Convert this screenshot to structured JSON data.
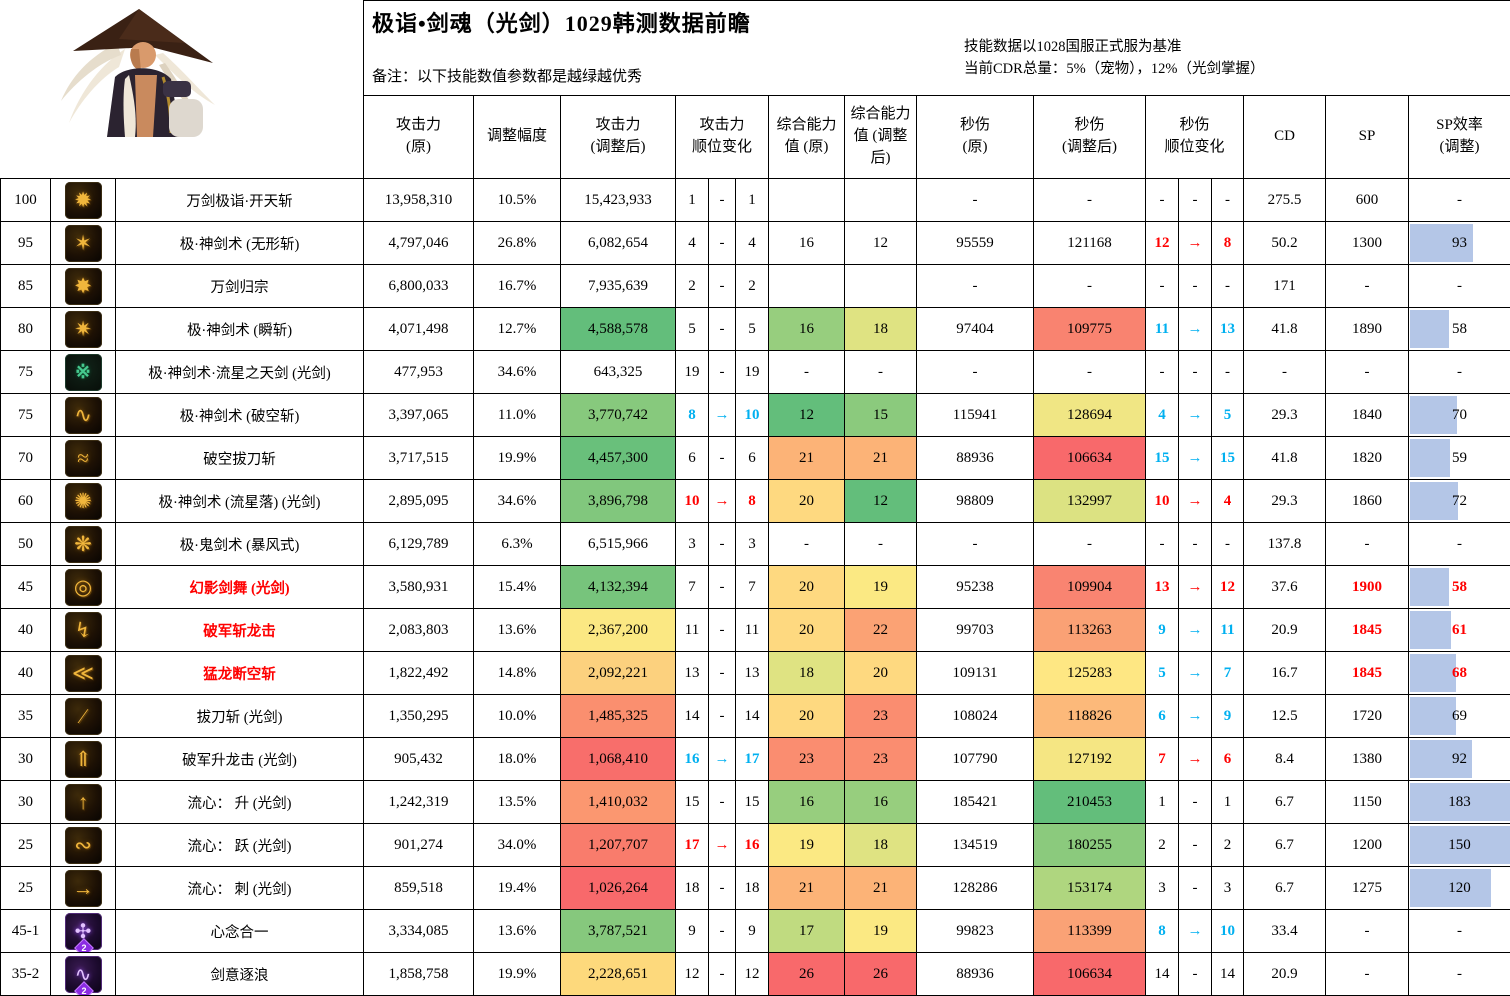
{
  "title": "极诣•剑魂（光剑）1029韩测数据前瞻",
  "note_left": "备注：以下技能数值参数都是越绿越优秀",
  "note_right_1": "技能数据以1028国服正式服为基准",
  "note_right_2": "当前CDR总量：5%（宠物），12%（光剑掌握）",
  "colors": {
    "bar": "#B4C6E7",
    "red_text": "#FF0000",
    "blue_text": "#00B0F0",
    "border": "#000000"
  },
  "columns": {
    "atk_orig": "攻击力\n(原)",
    "adj": "调整幅度",
    "atk_adj": "攻击力\n(调整后)",
    "atk_rank": "攻击力\n顺位变化",
    "comp_orig": "综合能力\n值 (原)",
    "comp_adj": "综合能力\n值 (调整\n后)",
    "dps_orig": "秒伤\n(原)",
    "dps_adj": "秒伤\n(调整后)",
    "dps_rank": "秒伤\n顺位变化",
    "cd": "CD",
    "sp": "SP",
    "sp_eff": "SP效率\n(调整)"
  },
  "rows": [
    {
      "lv": "100",
      "name": "万剑极诣·开天斩",
      "nameRed": false,
      "icon": {
        "style": "gold",
        "glyph": "✹"
      },
      "atkO": "13,958,310",
      "pct": "10.5%",
      "atkA": "15,423,933",
      "atkABg": "",
      "ar": [
        "1",
        "-",
        "1"
      ],
      "arC": "",
      "cO": "",
      "cOBg": "",
      "cA": "",
      "cABg": "",
      "dO": "-",
      "dA": "-",
      "dABg": "",
      "dr": [
        "-",
        "-",
        "-"
      ],
      "drC": "",
      "cd": "275.5",
      "sp": "600",
      "spRed": false,
      "eff": "-",
      "effRed": false,
      "bar": 0
    },
    {
      "lv": "95",
      "name": "极·神剑术 (无形斩)",
      "nameRed": false,
      "icon": {
        "style": "gold",
        "glyph": "✶"
      },
      "atkO": "4,797,046",
      "pct": "26.8%",
      "atkA": "6,082,654",
      "atkABg": "",
      "ar": [
        "4",
        "-",
        "4"
      ],
      "arC": "",
      "cO": "16",
      "cOBg": "",
      "cA": "12",
      "cABg": "",
      "dO": "95559",
      "dA": "121168",
      "dABg": "",
      "dr": [
        "12",
        "→",
        "8"
      ],
      "drC": "red",
      "cd": "50.2",
      "sp": "1300",
      "spRed": false,
      "eff": "93",
      "effRed": false,
      "bar": 62
    },
    {
      "lv": "85",
      "name": "万剑归宗",
      "nameRed": false,
      "icon": {
        "style": "gold",
        "glyph": "✸"
      },
      "atkO": "6,800,033",
      "pct": "16.7%",
      "atkA": "7,935,639",
      "atkABg": "",
      "ar": [
        "2",
        "-",
        "2"
      ],
      "arC": "",
      "cO": "",
      "cOBg": "",
      "cA": "",
      "cABg": "",
      "dO": "-",
      "dA": "-",
      "dABg": "",
      "dr": [
        "-",
        "-",
        "-"
      ],
      "drC": "",
      "cd": "171",
      "sp": "-",
      "spRed": false,
      "eff": "-",
      "effRed": false,
      "bar": 0
    },
    {
      "lv": "80",
      "name": "极·神剑术 (瞬斩)",
      "nameRed": false,
      "icon": {
        "style": "gold",
        "glyph": "✷"
      },
      "atkO": "4,071,498",
      "pct": "12.7%",
      "atkA": "4,588,578",
      "atkABg": "#63BE7B",
      "ar": [
        "5",
        "-",
        "5"
      ],
      "arC": "",
      "cO": "16",
      "cOBg": "#97CE7E",
      "cA": "18",
      "cABg": "#DFE382",
      "dO": "97404",
      "dA": "109775",
      "dABg": "#F98370",
      "dr": [
        "11",
        "→",
        "13"
      ],
      "drC": "blue",
      "cd": "41.8",
      "sp": "1890",
      "spRed": false,
      "eff": "58",
      "effRed": false,
      "bar": 38.7
    },
    {
      "lv": "75",
      "name": "极·神剑术·流星之天剑 (光剑)",
      "nameRed": false,
      "icon": {
        "style": "green",
        "glyph": "※"
      },
      "atkO": "477,953",
      "pct": "34.6%",
      "atkA": "643,325",
      "atkABg": "",
      "ar": [
        "19",
        "-",
        "19"
      ],
      "arC": "",
      "cO": "-",
      "cOBg": "",
      "cA": "-",
      "cABg": "",
      "dO": "-",
      "dA": "-",
      "dABg": "",
      "dr": [
        "-",
        "-",
        "-"
      ],
      "drC": "",
      "cd": "-",
      "sp": "-",
      "spRed": false,
      "eff": "-",
      "effRed": false,
      "bar": 0
    },
    {
      "lv": "75",
      "name": "极·神剑术 (破空斩)",
      "nameRed": false,
      "icon": {
        "style": "gold",
        "glyph": "∿"
      },
      "atkO": "3,397,065",
      "pct": "11.0%",
      "atkA": "3,770,742",
      "atkABg": "#87C97D",
      "ar": [
        "8",
        "→",
        "10"
      ],
      "arC": "blue",
      "cO": "12",
      "cOBg": "#63BE7B",
      "cA": "15",
      "cABg": "#8BCA7D",
      "dO": "115941",
      "dA": "128694",
      "dABg": "#F0E684",
      "dr": [
        "4",
        "→",
        "5"
      ],
      "drC": "blue",
      "cd": "29.3",
      "sp": "1840",
      "spRed": false,
      "eff": "70",
      "effRed": false,
      "bar": 46.7
    },
    {
      "lv": "70",
      "name": "破空拔刀斩",
      "nameRed": false,
      "icon": {
        "style": "gold",
        "glyph": "≈"
      },
      "atkO": "3,717,515",
      "pct": "19.9%",
      "atkA": "4,457,300",
      "atkABg": "#69C07B",
      "ar": [
        "6",
        "-",
        "6"
      ],
      "arC": "",
      "cO": "21",
      "cOBg": "#FCB377",
      "cA": "21",
      "cABg": "#FCB377",
      "dO": "88936",
      "dA": "106634",
      "dABg": "#F8696B",
      "dr": [
        "15",
        "→",
        "15"
      ],
      "drC": "blue",
      "cd": "41.8",
      "sp": "1820",
      "spRed": false,
      "eff": "59",
      "effRed": false,
      "bar": 39.3
    },
    {
      "lv": "60",
      "name": "极·神剑术 (流星落)  (光剑)",
      "nameRed": false,
      "icon": {
        "style": "gold",
        "glyph": "✺"
      },
      "atkO": "2,895,095",
      "pct": "34.6%",
      "atkA": "3,896,798",
      "atkABg": "#81C77D",
      "ar": [
        "10",
        "→",
        "8"
      ],
      "arC": "red",
      "cO": "20",
      "cOBg": "#FED980",
      "cA": "12",
      "cABg": "#63BE7B",
      "dO": "98809",
      "dA": "132997",
      "dABg": "#DCE282",
      "dr": [
        "10",
        "→",
        "4"
      ],
      "drC": "red",
      "cd": "29.3",
      "sp": "1860",
      "spRed": false,
      "eff": "72",
      "effRed": false,
      "bar": 48
    },
    {
      "lv": "50",
      "name": "极·鬼剑术 (暴风式)",
      "nameRed": false,
      "icon": {
        "style": "gold",
        "glyph": "❋"
      },
      "atkO": "6,129,789",
      "pct": "6.3%",
      "atkA": "6,515,966",
      "atkABg": "",
      "ar": [
        "3",
        "-",
        "3"
      ],
      "arC": "",
      "cO": "-",
      "cOBg": "",
      "cA": "-",
      "cABg": "",
      "dO": "-",
      "dA": "-",
      "dABg": "",
      "dr": [
        "-",
        "-",
        "-"
      ],
      "drC": "",
      "cd": "137.8",
      "sp": "-",
      "spRed": false,
      "eff": "-",
      "effRed": false,
      "bar": 0
    },
    {
      "lv": "45",
      "name": "幻影剑舞 (光剑)",
      "nameRed": true,
      "icon": {
        "style": "gold",
        "glyph": "◎"
      },
      "atkO": "3,580,931",
      "pct": "15.4%",
      "atkA": "4,132,394",
      "atkABg": "#77C47C",
      "ar": [
        "7",
        "-",
        "7"
      ],
      "arC": "",
      "cO": "20",
      "cOBg": "#FED980",
      "cA": "19",
      "cABg": "#FBE983",
      "dO": "95238",
      "dA": "109904",
      "dABg": "#F98471",
      "dr": [
        "13",
        "→",
        "12"
      ],
      "drC": "red",
      "cd": "37.6",
      "sp": "1900",
      "spRed": true,
      "eff": "58",
      "effRed": true,
      "bar": 38.7
    },
    {
      "lv": "40",
      "name": "破军斩龙击",
      "nameRed": true,
      "icon": {
        "style": "gold",
        "glyph": "↯"
      },
      "atkO": "2,083,803",
      "pct": "13.6%",
      "atkA": "2,367,200",
      "atkABg": "#FBE883",
      "ar": [
        "11",
        "-",
        "11"
      ],
      "arC": "",
      "cO": "20",
      "cOBg": "#FED980",
      "cA": "22",
      "cABg": "#FBA274",
      "dO": "99703",
      "dA": "113263",
      "dABg": "#FAA175",
      "dr": [
        "9",
        "→",
        "11"
      ],
      "drC": "blue",
      "cd": "20.9",
      "sp": "1845",
      "spRed": true,
      "eff": "61",
      "effRed": true,
      "bar": 40.7
    },
    {
      "lv": "40",
      "name": "猛龙断空斩",
      "nameRed": true,
      "icon": {
        "style": "gold",
        "glyph": "≪"
      },
      "atkO": "1,822,492",
      "pct": "14.8%",
      "atkA": "2,092,221",
      "atkABg": "#FCD17E",
      "ar": [
        "13",
        "-",
        "13"
      ],
      "arC": "",
      "cO": "18",
      "cOBg": "#DFE382",
      "cA": "20",
      "cABg": "#FED980",
      "dO": "109131",
      "dA": "125283",
      "dABg": "#FEE783",
      "dr": [
        "5",
        "→",
        "7"
      ],
      "drC": "blue",
      "cd": "16.7",
      "sp": "1845",
      "spRed": true,
      "eff": "68",
      "effRed": true,
      "bar": 45.3
    },
    {
      "lv": "35",
      "name": "拔刀斩 (光剑)",
      "nameRed": false,
      "icon": {
        "style": "gold",
        "glyph": "∕"
      },
      "atkO": "1,350,295",
      "pct": "10.0%",
      "atkA": "1,485,325",
      "atkABg": "#FA8F6F",
      "ar": [
        "14",
        "-",
        "14"
      ],
      "arC": "",
      "cO": "20",
      "cOBg": "#FED980",
      "cA": "23",
      "cABg": "#FA8D70",
      "dO": "108024",
      "dA": "118826",
      "dABg": "#FCB97A",
      "dr": [
        "6",
        "→",
        "9"
      ],
      "drC": "blue",
      "cd": "12.5",
      "sp": "1720",
      "spRed": false,
      "eff": "69",
      "effRed": false,
      "bar": 46
    },
    {
      "lv": "30",
      "name": "破军升龙击 (光剑)",
      "nameRed": false,
      "icon": {
        "style": "gold",
        "glyph": "⇑"
      },
      "atkO": "905,432",
      "pct": "18.0%",
      "atkA": "1,068,410",
      "atkABg": "#F86E6B",
      "ar": [
        "16",
        "→",
        "17"
      ],
      "arC": "blue",
      "cO": "23",
      "cOBg": "#FA8D70",
      "cA": "23",
      "cABg": "#FA8D70",
      "dO": "107790",
      "dA": "127192",
      "dABg": "#F5E683",
      "dr": [
        "7",
        "→",
        "6"
      ],
      "drC": "red",
      "cd": "8.4",
      "sp": "1380",
      "spRed": false,
      "eff": "92",
      "effRed": false,
      "bar": 61.3
    },
    {
      "lv": "30",
      "name": "流心： 升 (光剑)",
      "nameRed": false,
      "icon": {
        "style": "gold",
        "glyph": "↑"
      },
      "atkO": "1,242,319",
      "pct": "13.5%",
      "atkA": "1,410,032",
      "atkABg": "#FB9770",
      "ar": [
        "15",
        "-",
        "15"
      ],
      "arC": "",
      "cO": "16",
      "cOBg": "#97CE7E",
      "cA": "16",
      "cABg": "#97CE7E",
      "dO": "185421",
      "dA": "210453",
      "dABg": "#63BE7B",
      "dr": [
        "1",
        "-",
        "1"
      ],
      "drC": "",
      "cd": "6.7",
      "sp": "1150",
      "spRed": false,
      "eff": "183",
      "effRed": false,
      "bar": 100
    },
    {
      "lv": "25",
      "name": "流心： 跃 (光剑)",
      "nameRed": false,
      "icon": {
        "style": "gold",
        "glyph": "∾"
      },
      "atkO": "901,274",
      "pct": "34.0%",
      "atkA": "1,207,707",
      "atkABg": "#F97C6C",
      "ar": [
        "17",
        "→",
        "16"
      ],
      "arC": "red",
      "cO": "19",
      "cOBg": "#FBE983",
      "cA": "18",
      "cABg": "#DFE382",
      "dO": "134519",
      "dA": "180255",
      "dABg": "#8BCA7D",
      "dr": [
        "2",
        "-",
        "2"
      ],
      "drC": "",
      "cd": "6.7",
      "sp": "1200",
      "spRed": false,
      "eff": "150",
      "effRed": false,
      "bar": 100
    },
    {
      "lv": "25",
      "name": "流心： 刺 (光剑)",
      "nameRed": false,
      "icon": {
        "style": "gold",
        "glyph": "→"
      },
      "atkO": "859,518",
      "pct": "19.4%",
      "atkA": "1,026,264",
      "atkABg": "#F8696B",
      "ar": [
        "18",
        "-",
        "18"
      ],
      "arC": "",
      "cO": "21",
      "cOBg": "#FCB377",
      "cA": "21",
      "cABg": "#FCB377",
      "dO": "128286",
      "dA": "153174",
      "dABg": "#AFD67F",
      "dr": [
        "3",
        "-",
        "3"
      ],
      "drC": "",
      "cd": "6.7",
      "sp": "1275",
      "spRed": false,
      "eff": "120",
      "effRed": false,
      "bar": 80
    },
    {
      "lv": "45-1",
      "name": "心念合一",
      "nameRed": false,
      "icon": {
        "style": "awk",
        "glyph": "✣",
        "badge": "2"
      },
      "atkO": "3,334,085",
      "pct": "13.6%",
      "atkA": "3,787,521",
      "atkABg": "#86C87D",
      "ar": [
        "9",
        "-",
        "9"
      ],
      "arC": "",
      "cO": "17",
      "cOBg": "#C0DB80",
      "cA": "19",
      "cABg": "#FBE983",
      "dO": "99823",
      "dA": "113399",
      "dABg": "#FAA276",
      "dr": [
        "8",
        "→",
        "10"
      ],
      "drC": "blue",
      "cd": "33.4",
      "sp": "-",
      "spRed": false,
      "eff": "-",
      "effRed": false,
      "bar": 0
    },
    {
      "lv": "35-2",
      "name": "剑意逐浪",
      "nameRed": false,
      "icon": {
        "style": "awk",
        "glyph": "∿",
        "badge": "2"
      },
      "atkO": "1,858,758",
      "pct": "19.9%",
      "atkA": "2,228,651",
      "atkABg": "#FDD97C",
      "ar": [
        "12",
        "-",
        "12"
      ],
      "arC": "",
      "cO": "26",
      "cOBg": "#F8696B",
      "cA": "26",
      "cABg": "#F8696B",
      "dO": "88936",
      "dA": "106634",
      "dABg": "#F8696B",
      "dr": [
        "14",
        "-",
        "14"
      ],
      "drC": "",
      "cd": "20.9",
      "sp": "-",
      "spRed": false,
      "eff": "-",
      "effRed": false,
      "bar": 0
    }
  ]
}
